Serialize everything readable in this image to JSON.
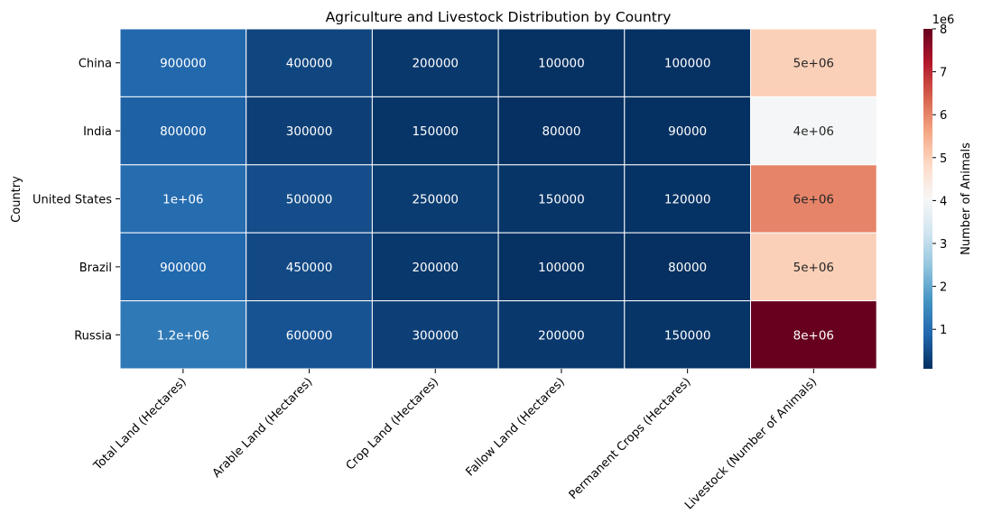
{
  "chart_data": {
    "type": "heatmap",
    "title": "Agriculture and Livestock Distribution by Country",
    "ylabel": "Country",
    "xlabel": "",
    "rows": [
      "China",
      "India",
      "United States",
      "Brazil",
      "Russia"
    ],
    "columns": [
      "Total Land (Hectares)",
      "Arable Land (Hectares)",
      "Crop Land (Hectares)",
      "Fallow Land (Hectares)",
      "Permanent Crops (Hectares)",
      "Livestock (Number of Animals)"
    ],
    "values": [
      [
        900000,
        400000,
        200000,
        100000,
        100000,
        5000000
      ],
      [
        800000,
        300000,
        150000,
        80000,
        90000,
        4000000
      ],
      [
        1000000,
        500000,
        250000,
        150000,
        120000,
        6000000
      ],
      [
        900000,
        450000,
        200000,
        100000,
        80000,
        5000000
      ],
      [
        1200000,
        600000,
        300000,
        200000,
        150000,
        8000000
      ]
    ],
    "cell_labels": [
      [
        "900000",
        "400000",
        "200000",
        "100000",
        "100000",
        "5e+06"
      ],
      [
        "800000",
        "300000",
        "150000",
        "80000",
        "90000",
        "4e+06"
      ],
      [
        "1e+06",
        "500000",
        "250000",
        "150000",
        "120000",
        "6e+06"
      ],
      [
        "900000",
        "450000",
        "200000",
        "100000",
        "80000",
        "5e+06"
      ],
      [
        "1.2e+06",
        "600000",
        "300000",
        "200000",
        "150000",
        "8e+06"
      ]
    ],
    "colormap": "RdBu_r",
    "colorbar": {
      "label": "Number of Animals",
      "scale_label": "1e6",
      "range": [
        80000,
        8000000
      ],
      "ticks": [
        1,
        2,
        3,
        4,
        5,
        6,
        7,
        8
      ],
      "tick_labels": [
        "1",
        "2",
        "3",
        "4",
        "5",
        "6",
        "7",
        "8"
      ]
    },
    "grid_line_color": "#ffffff"
  }
}
